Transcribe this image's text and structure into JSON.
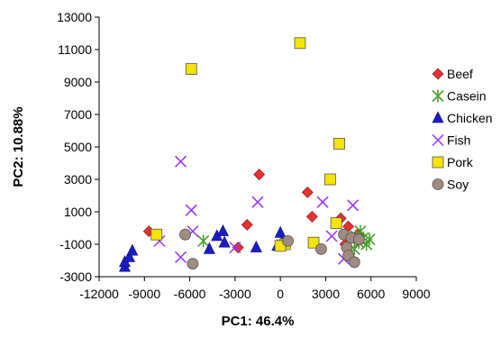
{
  "chart_data": {
    "type": "scatter",
    "title": "",
    "xlabel": "PC1: 46.4%",
    "ylabel": "PC2: 10.88%",
    "xlim": [
      -12000,
      9000
    ],
    "ylim": [
      -3000,
      13000
    ],
    "xticks": [
      -12000,
      -9000,
      -6000,
      -3000,
      0,
      3000,
      6000,
      9000
    ],
    "yticks": [
      -3000,
      -1000,
      1000,
      3000,
      5000,
      7000,
      9000,
      11000,
      13000
    ],
    "xtick_labels": [
      "-12000",
      "-9000",
      "-6000",
      "-3000",
      "0",
      "3000",
      "6000",
      "9000"
    ],
    "ytick_labels": [
      "-3000",
      "-1000",
      "1000",
      "3000",
      "5000",
      "7000",
      "9000",
      "11000",
      "13000"
    ],
    "grid": false,
    "legend_position": "right",
    "series": [
      {
        "name": "Beef",
        "marker": "diamond",
        "color": "#e8312f",
        "points": [
          [
            -8700,
            -200
          ],
          [
            -2200,
            200
          ],
          [
            -1400,
            3300
          ],
          [
            -2800,
            -1200
          ],
          [
            1800,
            2200
          ],
          [
            2100,
            700
          ],
          [
            4000,
            600
          ],
          [
            4500,
            100
          ],
          [
            4300,
            -1000
          ],
          [
            5100,
            -400
          ]
        ]
      },
      {
        "name": "Casein",
        "marker": "asterisk",
        "color": "#4aa02c",
        "points": [
          [
            -5100,
            -800
          ],
          [
            5000,
            -500
          ],
          [
            5300,
            -200
          ],
          [
            5500,
            -600
          ],
          [
            5700,
            -1000
          ],
          [
            5900,
            -700
          ],
          [
            5200,
            -900
          ],
          [
            4900,
            -1300
          ]
        ]
      },
      {
        "name": "Chicken",
        "marker": "triangle",
        "color": "#1c1ccc",
        "points": [
          [
            -10300,
            -2400
          ],
          [
            -10300,
            -2100
          ],
          [
            -10000,
            -1800
          ],
          [
            -9800,
            -1400
          ],
          [
            -4700,
            -1300
          ],
          [
            -4200,
            -500
          ],
          [
            -3800,
            -200
          ],
          [
            -3700,
            -900
          ],
          [
            -1600,
            -1200
          ],
          [
            0,
            -300
          ],
          [
            100,
            -900
          ],
          [
            -200,
            -1100
          ]
        ]
      },
      {
        "name": "Fish",
        "marker": "x",
        "color": "#9b30ff",
        "points": [
          [
            -8000,
            -800
          ],
          [
            -6600,
            4100
          ],
          [
            -5900,
            1100
          ],
          [
            -5800,
            -200
          ],
          [
            -6600,
            -1800
          ],
          [
            -3000,
            -1200
          ],
          [
            -1500,
            1600
          ],
          [
            2800,
            1600
          ],
          [
            3400,
            -500
          ],
          [
            4800,
            1400
          ],
          [
            4200,
            -1900
          ]
        ]
      },
      {
        "name": "Pork",
        "marker": "square",
        "color": "#f5e400",
        "points": [
          [
            -8200,
            -400
          ],
          [
            -5900,
            9800
          ],
          [
            1300,
            11400
          ],
          [
            3300,
            3000
          ],
          [
            3900,
            5200
          ],
          [
            3700,
            300
          ],
          [
            2200,
            -900
          ],
          [
            300,
            -1000
          ],
          [
            0,
            -1100
          ]
        ]
      },
      {
        "name": "Soy",
        "marker": "circle",
        "color": "#9f8b7f",
        "points": [
          [
            -6300,
            -400
          ],
          [
            -5800,
            -2200
          ],
          [
            500,
            -800
          ],
          [
            2700,
            -1300
          ],
          [
            4200,
            -400
          ],
          [
            4700,
            -600
          ],
          [
            4400,
            -1200
          ],
          [
            4500,
            -1700
          ],
          [
            4900,
            -2100
          ],
          [
            5200,
            -700
          ]
        ]
      }
    ]
  }
}
